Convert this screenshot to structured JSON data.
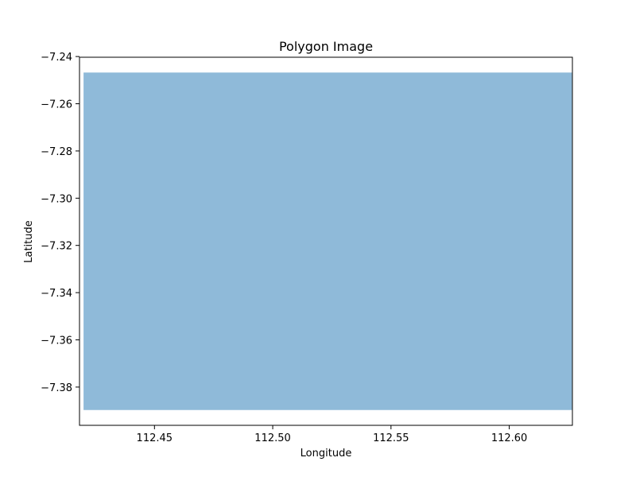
{
  "chart_data": {
    "type": "area",
    "title": "Polygon Image",
    "xlabel": "Longitude",
    "ylabel": "Latitude",
    "xlim": [
      112.4183,
      112.6267
    ],
    "ylim": [
      -7.3962,
      -7.2403
    ],
    "xticks": [
      112.45,
      112.5,
      112.55,
      112.6
    ],
    "xtick_labels": [
      "112.45",
      "112.50",
      "112.55",
      "112.60"
    ],
    "yticks": [
      -7.24,
      -7.26,
      -7.28,
      -7.3,
      -7.32,
      -7.34,
      -7.36,
      -7.38
    ],
    "ytick_labels": [
      "−7.24",
      "−7.26",
      "−7.28",
      "−7.30",
      "−7.32",
      "−7.34",
      "−7.36",
      "−7.38"
    ],
    "grid": false,
    "legend": "none",
    "series": [
      {
        "polygon": [
          {
            "x": 112.42,
            "y": -7.2468
          },
          {
            "x": 112.6265,
            "y": -7.2468
          },
          {
            "x": 112.6265,
            "y": -7.3897
          },
          {
            "x": 112.42,
            "y": -7.3897
          }
        ],
        "color": "#8fbad9"
      }
    ]
  }
}
